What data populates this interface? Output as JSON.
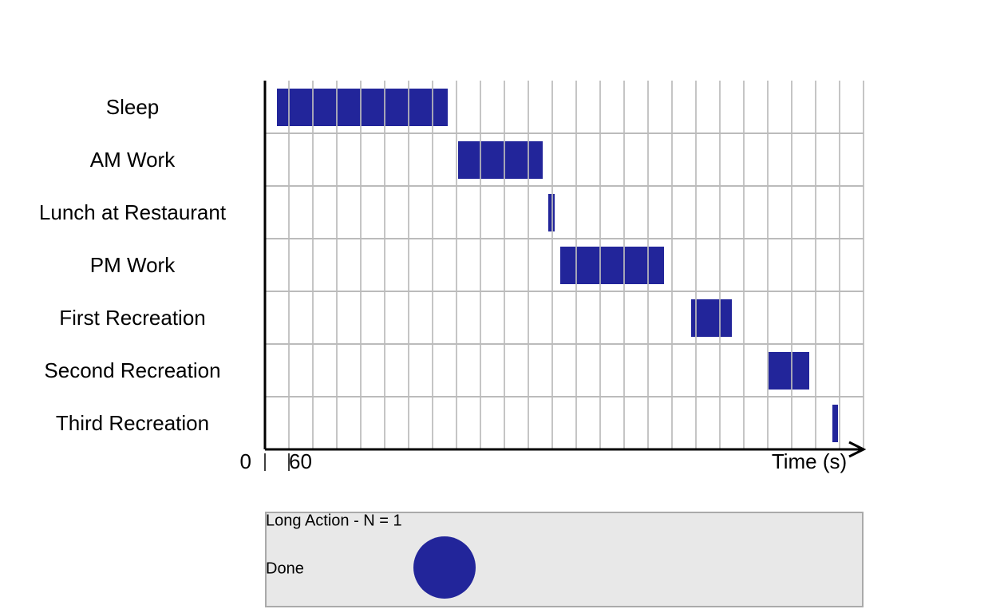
{
  "chart_data": {
    "type": "gantt",
    "categories": [
      "Sleep",
      "AM Work",
      "Lunch at Restaurant",
      "PM Work",
      "First Recreation",
      "Second Recreation",
      "Third Recreation"
    ],
    "starts": [
      30,
      484,
      710,
      740,
      1068,
      1262,
      1422
    ],
    "ends": [
      458,
      696,
      726,
      1000,
      1170,
      1364,
      1436
    ],
    "color": "#22259a",
    "xlabel": "Time (s)",
    "xlim": [
      0,
      1500
    ],
    "xticks": [
      0,
      60
    ],
    "xgrid": [
      60,
      120,
      180,
      240,
      300,
      360,
      420,
      480,
      540,
      600,
      660,
      720,
      780,
      840,
      900,
      960,
      1020,
      1080,
      1140,
      1200,
      1260,
      1320,
      1380,
      1440,
      1500
    ],
    "legend": {
      "title": "Long Action  -  N =  1",
      "entries": [
        {
          "label": "Done",
          "color": "#22259a"
        }
      ]
    }
  }
}
